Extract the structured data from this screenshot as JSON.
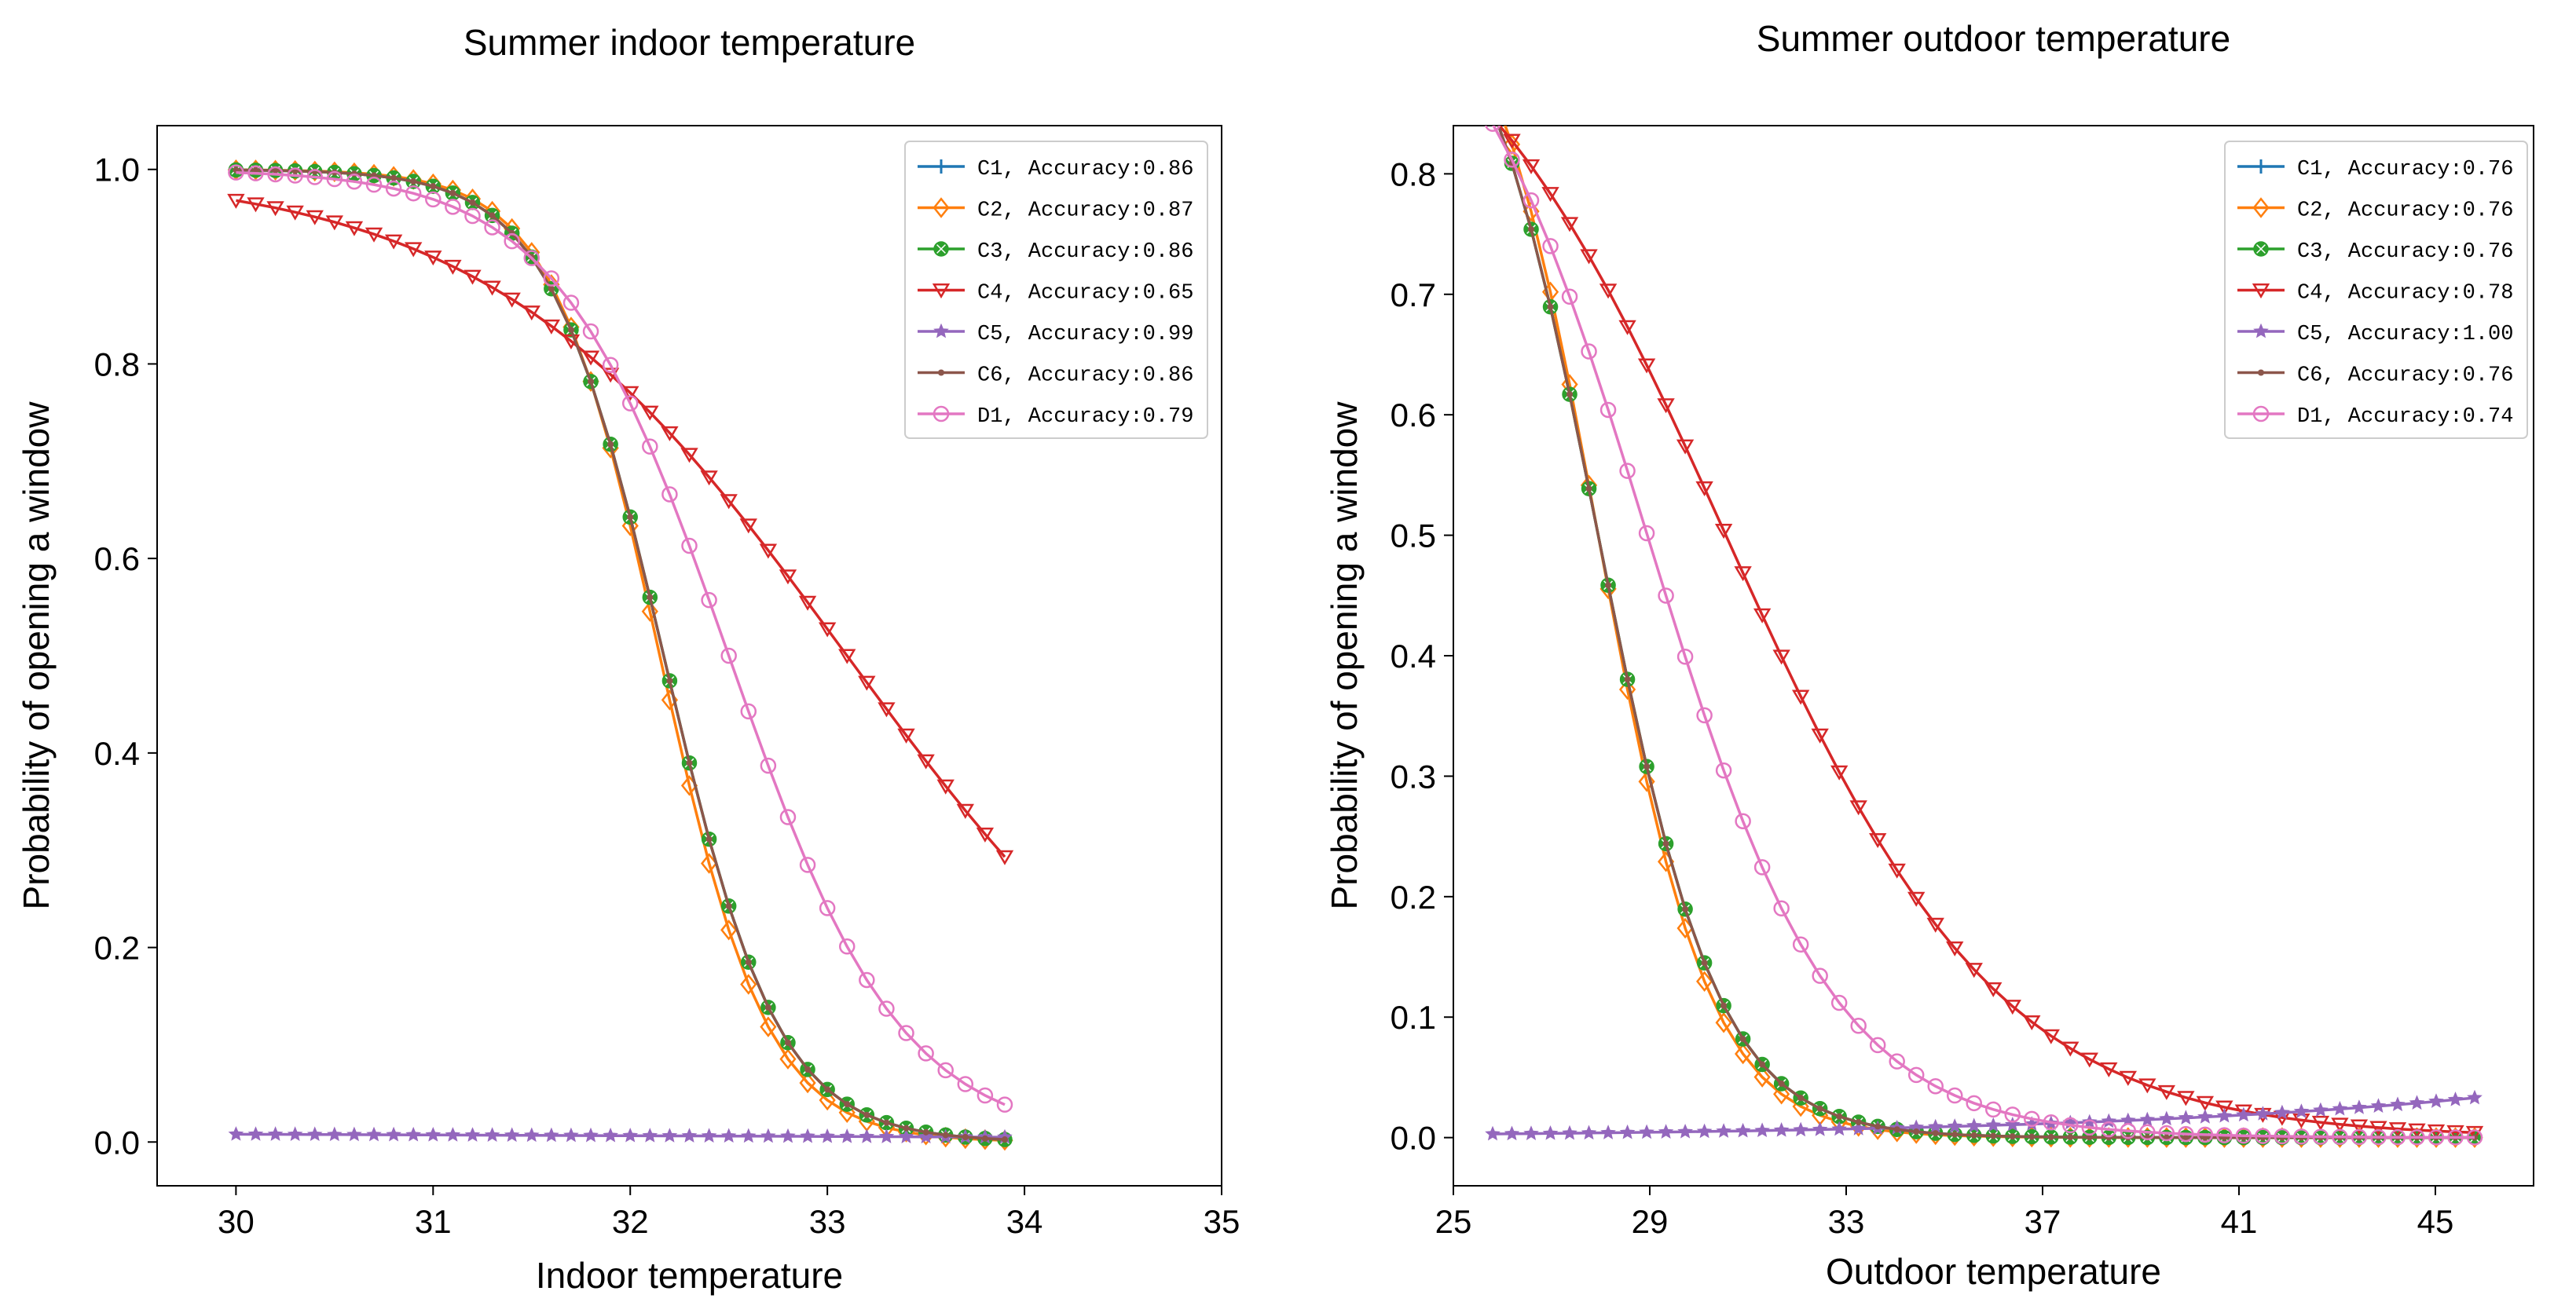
{
  "chart_data": [
    {
      "type": "line",
      "title": "Summer indoor temperature",
      "xlabel": "Indoor temperature",
      "ylabel": "Probability of opening a window",
      "xlim": [
        29.6,
        35
      ],
      "ylim": [
        -0.045,
        1.045
      ],
      "xticks": [
        30,
        31,
        32,
        33,
        34,
        35
      ],
      "yticks": [
        0.0,
        0.2,
        0.4,
        0.6,
        0.8,
        1.0
      ],
      "xtick_labels": [
        "30",
        "31",
        "32",
        "33",
        "34",
        "35"
      ],
      "ytick_labels": [
        "0.0",
        "0.2",
        "0.4",
        "0.6",
        "0.8",
        "1.0"
      ],
      "legend_position": "top-right",
      "x_range": [
        30,
        33.9
      ],
      "points": 40,
      "series": [
        {
          "name": "C1",
          "label": "C1, Accuracy:0.86",
          "color": "#1f77b4",
          "marker": "plus",
          "model": {
            "kind": "logistic",
            "mid": 32.17,
            "slope": 3.45,
            "amp": 1.0
          }
        },
        {
          "name": "C2",
          "label": "C2, Accuracy:0.87",
          "color": "#ff7f0e",
          "marker": "diamond",
          "model": {
            "kind": "logistic",
            "mid": 32.15,
            "slope": 3.65,
            "amp": 1.0
          }
        },
        {
          "name": "C3",
          "label": "C3, Accuracy:0.86",
          "color": "#2ca02c",
          "marker": "x-circle",
          "model": {
            "kind": "logistic",
            "mid": 32.17,
            "slope": 3.45,
            "amp": 1.0
          }
        },
        {
          "name": "C4",
          "label": "C4, Accuracy:0.65",
          "color": "#d62728",
          "marker": "triangle-down",
          "model": {
            "kind": "logistic",
            "mid": 33.1,
            "slope": 1.1,
            "amp": 1.0
          }
        },
        {
          "name": "C5",
          "label": "C5, Accuracy:0.99",
          "color": "#9467bd",
          "marker": "star",
          "model": {
            "kind": "linear",
            "start": 0.008,
            "end": 0.005
          }
        },
        {
          "name": "C6",
          "label": "C6, Accuracy:0.86",
          "color": "#8c564b",
          "marker": "dot",
          "model": {
            "kind": "logistic",
            "mid": 32.17,
            "slope": 3.45,
            "amp": 1.0
          }
        },
        {
          "name": "D1",
          "label": "D1, Accuracy:0.79",
          "color": "#e377c2",
          "marker": "circle",
          "model": {
            "kind": "logistic",
            "mid": 32.5,
            "slope": 2.3,
            "amp": 1.0
          }
        }
      ]
    },
    {
      "type": "line",
      "title": "Summer outdoor temperature",
      "xlabel": "Outdoor temperature",
      "ylabel": "Probability of opening a window",
      "xlim": [
        25,
        47
      ],
      "ylim": [
        -0.04,
        0.84
      ],
      "xticks": [
        25,
        29,
        33,
        37,
        41,
        45
      ],
      "yticks": [
        0.0,
        0.1,
        0.2,
        0.3,
        0.4,
        0.5,
        0.6,
        0.7,
        0.8
      ],
      "xtick_labels": [
        "25",
        "29",
        "33",
        "37",
        "41",
        "45"
      ],
      "ytick_labels": [
        "0.0",
        "0.1",
        "0.2",
        "0.3",
        "0.4",
        "0.5",
        "0.6",
        "0.7",
        "0.8"
      ],
      "legend_position": "top-right",
      "x_range": [
        25.8,
        45.8
      ],
      "points": 52,
      "series": [
        {
          "name": "C1",
          "label": "C1, Accuracy:0.76",
          "color": "#1f77b4",
          "marker": "plus",
          "model": {
            "kind": "logistic",
            "mid": 27.95,
            "slope": 0.82,
            "amp": 1.0
          }
        },
        {
          "name": "C2",
          "label": "C2, Accuracy:0.76",
          "color": "#ff7f0e",
          "marker": "diamond",
          "model": {
            "kind": "logistic",
            "mid": 27.95,
            "slope": 0.88,
            "amp": 1.0
          }
        },
        {
          "name": "C3",
          "label": "C3, Accuracy:0.76",
          "color": "#2ca02c",
          "marker": "x-circle",
          "model": {
            "kind": "logistic",
            "mid": 27.95,
            "slope": 0.82,
            "amp": 1.0
          }
        },
        {
          "name": "C4",
          "label": "C4, Accuracy:0.78",
          "color": "#d62728",
          "marker": "triangle-down",
          "model": {
            "kind": "logistic",
            "mid": 30.55,
            "slope": 0.36,
            "amp": 1.0
          }
        },
        {
          "name": "C5",
          "label": "C5, Accuracy:1.00",
          "color": "#9467bd",
          "marker": "star",
          "model": {
            "kind": "exp",
            "start": 0.003,
            "end": 0.033
          }
        },
        {
          "name": "C6",
          "label": "C6, Accuracy:0.76",
          "color": "#8c564b",
          "marker": "dot",
          "model": {
            "kind": "logistic",
            "mid": 27.95,
            "slope": 0.82,
            "amp": 1.0
          }
        },
        {
          "name": "D1",
          "label": "D1, Accuracy:0.74",
          "color": "#e377c2",
          "marker": "circle",
          "model": {
            "kind": "logistic",
            "mid": 28.95,
            "slope": 0.53,
            "amp": 1.0
          }
        }
      ]
    }
  ]
}
